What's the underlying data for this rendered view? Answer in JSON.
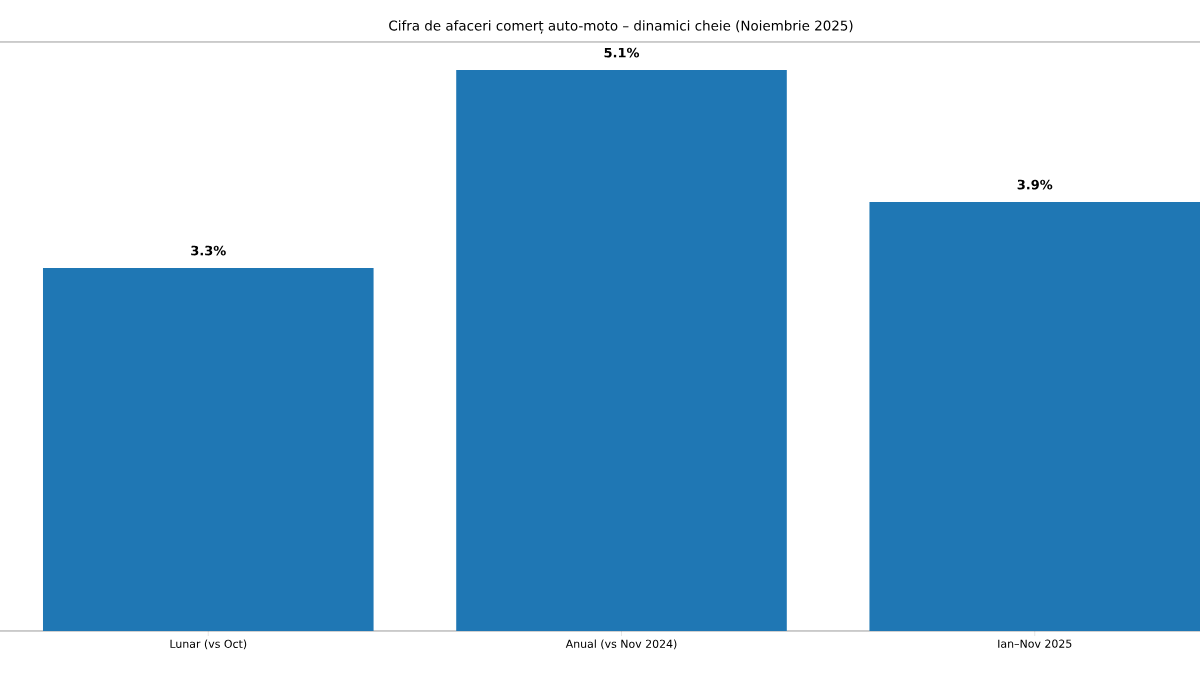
{
  "chart_data": {
    "type": "bar",
    "title": "Cifra de afaceri comerț auto-moto – dinamici cheie (Noiembrie 2025)",
    "categories": [
      "Lunar (vs Oct)",
      "Anual (vs Nov 2024)",
      "Ian–Nov 2025"
    ],
    "values": [
      3.3,
      5.1,
      3.9
    ],
    "value_labels": [
      "3.3%",
      "5.1%",
      "3.9%"
    ],
    "color": "#1f77b4"
  }
}
